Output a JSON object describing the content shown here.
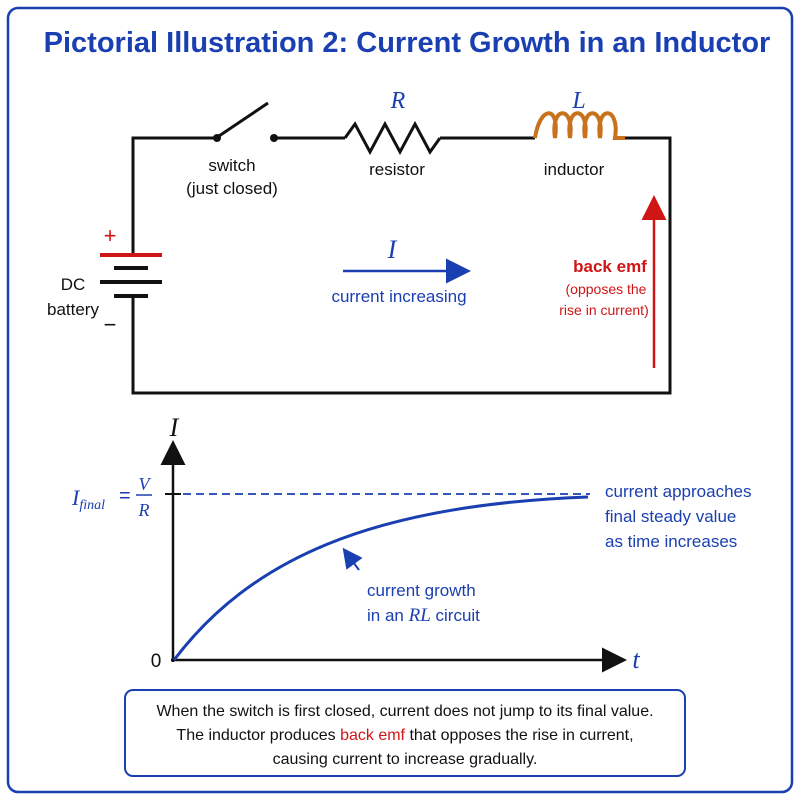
{
  "title": "Pictorial Illustration 2: Current Growth in an Inductor",
  "circuit": {
    "switch": {
      "label": "switch",
      "state": "(just closed)"
    },
    "resistor": {
      "symbol": "R",
      "label": "resistor"
    },
    "inductor": {
      "symbol": "L",
      "label": "inductor"
    },
    "battery": {
      "plus": "+",
      "minus": "−",
      "label": [
        "DC",
        "battery"
      ]
    },
    "current": {
      "symbol": "I",
      "label": "current increasing"
    },
    "back_emf": {
      "label": "back emf",
      "note": [
        "(opposes the",
        "rise in current)"
      ]
    }
  },
  "graph": {
    "y_axis": "I",
    "x_axis": "t",
    "origin": "0",
    "final": {
      "symbol": "I",
      "subscript": "final",
      "equals": "=",
      "numerator": "V",
      "denominator": "R"
    },
    "approach_note": [
      "current approaches",
      "final steady value",
      "as time increases"
    ],
    "growth_note": {
      "line1": "current growth",
      "line2_pre": "in an ",
      "line2_em": "RL",
      "line2_post": " circuit"
    }
  },
  "caption": {
    "line1": "When the switch is first closed, current does not jump to its final value.",
    "line2_pre": "The inductor produces ",
    "line2_em": "back emf",
    "line2_post": " that opposes the rise in current,",
    "line3": "causing current to increase gradually."
  }
}
